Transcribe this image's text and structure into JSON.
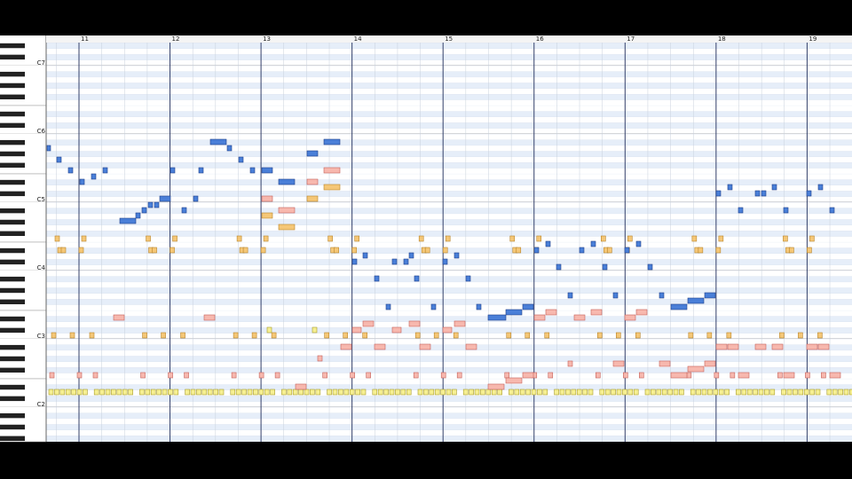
{
  "header": {
    "measures": [
      "11",
      "12",
      "13",
      "14",
      "15",
      "16",
      "17",
      "18",
      "19"
    ]
  },
  "keyboard": {
    "octave_labels": [
      "C7",
      "C6",
      "C5",
      "C4",
      "C3",
      "C2"
    ]
  }
}
